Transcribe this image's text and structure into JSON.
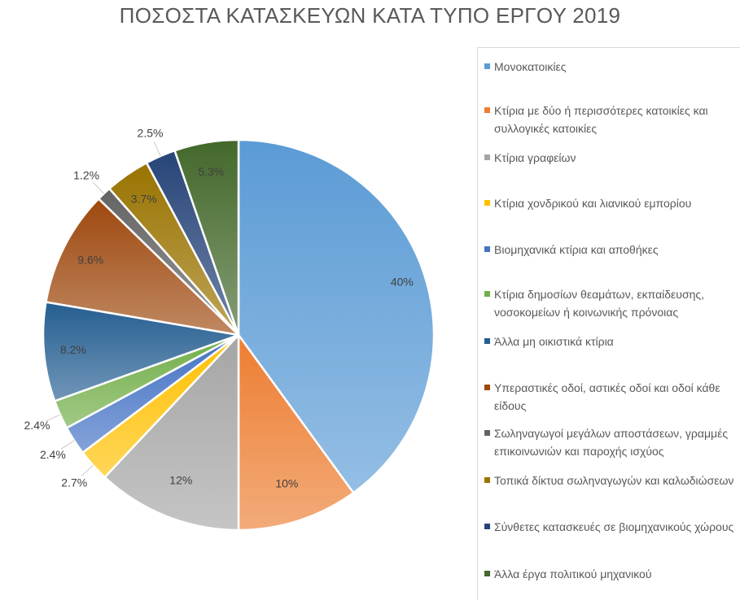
{
  "chart_data": {
    "type": "pie",
    "title": "ΠΟΣΟΣΤΑ ΚΑΤΑΣΚΕΥΩΝ ΚΑΤΑ ΤΥΠΟ ΕΡΓΟΥ 2019",
    "legend_position": "right",
    "slices": [
      {
        "label": "Μονοκατοικίες",
        "value": 40,
        "display": "40%",
        "color": "#5b9bd5"
      },
      {
        "label": "Κτίρια με δύο ή περισσότερες κατοικίες και συλλογικές κατοικίες",
        "value": 10,
        "display": "10%",
        "color": "#ed7d31"
      },
      {
        "label": "Κτίρια γραφείων",
        "value": 12,
        "display": "12%",
        "color": "#a5a5a5"
      },
      {
        "label": "Κτίρια χονδρικού και λιανικού εμπορίου",
        "value": 2.7,
        "display": "2.7%",
        "color": "#ffc000"
      },
      {
        "label": "Βιομηχανικά κτίρια και αποθήκες",
        "value": 2.4,
        "display": "2.4%",
        "color": "#4472c4"
      },
      {
        "label": "Κτίρια δημοσίων θεαμάτων, εκπαίδευσης, νοσοκομείων ή κοινωνικής πρόνοιας",
        "value": 2.4,
        "display": "2.4%",
        "color": "#70ad47"
      },
      {
        "label": "Άλλα μη οικιστικά κτίρια",
        "value": 8.2,
        "display": "8.2%",
        "color": "#255e91"
      },
      {
        "label": "Υπεραστικές οδοί, αστικές οδοί και οδοί κάθε είδους",
        "value": 9.6,
        "display": "9.6%",
        "color": "#9e480e"
      },
      {
        "label": "Σωληναγωγοί μεγάλων αποστάσεων, γραμμές επικοινωνιών και παροχής ισχύος",
        "value": 1.2,
        "display": "1.2%",
        "color": "#636363"
      },
      {
        "label": "Τοπικά δίκτυα σωληναγωγών και καλωδιώσεων",
        "value": 3.7,
        "display": "3.7%",
        "color": "#997300"
      },
      {
        "label": "Σύνθετες κατασκευές σε βιομηχανικούς χώρους",
        "value": 2.5,
        "display": "2.5%",
        "color": "#264478"
      },
      {
        "label": "Άλλα έργα πολιτικού μηχανικού",
        "value": 5.3,
        "display": "5.3%",
        "color": "#43682b"
      }
    ]
  }
}
